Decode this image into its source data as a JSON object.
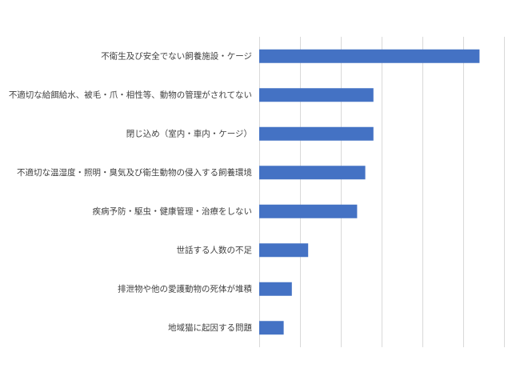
{
  "chart_data": {
    "type": "bar",
    "orientation": "horizontal",
    "categories": [
      "不衛生及び安全でない飼養施設・ケージ",
      "不適切な給餌給水、被毛・爪・相性等、動物の管理がされてない",
      "閉じ込め（室内・車内・ケージ）",
      "不適切な温湿度・照明・臭気及び衛生動物の侵入する飼養環境",
      "疾病予防・駆虫・健康管理・治療をしない",
      "世話する人数の不足",
      "排泄物や他の愛護動物の死体が堆積",
      "地域猫に起因する問題"
    ],
    "values": [
      54,
      28,
      28,
      26,
      24,
      12,
      8,
      6
    ],
    "xlim": [
      0,
      60
    ],
    "tick_step": 10,
    "title": "",
    "xlabel": "",
    "ylabel": "",
    "grid": true,
    "legend": "none",
    "bar_color": "#4472c4",
    "grid_color": "#d9d9d9",
    "label_color": "#404040"
  }
}
